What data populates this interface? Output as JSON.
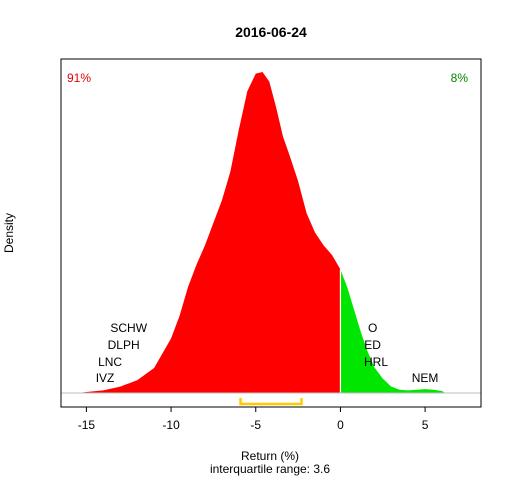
{
  "chart_data": {
    "type": "area",
    "title": "2016-06-24",
    "xlabel": "Return (%)",
    "subtitle": "interquartile range: 3.6",
    "ylabel": "Density",
    "xlim": [
      -16.5,
      8.3
    ],
    "x_ticks": [
      -15,
      -10,
      -5,
      0,
      5
    ],
    "x_tick_labels": [
      "-15",
      "-10",
      "-5",
      "0",
      "5"
    ],
    "density_curve": [
      [
        -15.5,
        0.0
      ],
      [
        -15.0,
        0.003
      ],
      [
        -14.0,
        0.008
      ],
      [
        -13.0,
        0.02
      ],
      [
        -12.0,
        0.04
      ],
      [
        -11.0,
        0.078
      ],
      [
        -10.0,
        0.17
      ],
      [
        -9.5,
        0.24
      ],
      [
        -9.0,
        0.33
      ],
      [
        -8.5,
        0.4
      ],
      [
        -8.0,
        0.46
      ],
      [
        -7.5,
        0.53
      ],
      [
        -7.0,
        0.6
      ],
      [
        -6.5,
        0.69
      ],
      [
        -6.0,
        0.82
      ],
      [
        -5.5,
        0.94
      ],
      [
        -5.0,
        0.995
      ],
      [
        -4.6,
        1.0
      ],
      [
        -4.2,
        0.97
      ],
      [
        -3.8,
        0.89
      ],
      [
        -3.4,
        0.8
      ],
      [
        -3.0,
        0.74
      ],
      [
        -2.5,
        0.66
      ],
      [
        -2.0,
        0.56
      ],
      [
        -1.5,
        0.5
      ],
      [
        -1.0,
        0.46
      ],
      [
        -0.5,
        0.43
      ],
      [
        0.0,
        0.385
      ],
      [
        0.4,
        0.33
      ],
      [
        0.8,
        0.26
      ],
      [
        1.2,
        0.19
      ],
      [
        1.6,
        0.13
      ],
      [
        2.0,
        0.08
      ],
      [
        2.5,
        0.045
      ],
      [
        3.0,
        0.02
      ],
      [
        3.5,
        0.01
      ],
      [
        4.0,
        0.008
      ],
      [
        4.5,
        0.01
      ],
      [
        5.0,
        0.012
      ],
      [
        5.5,
        0.01
      ],
      [
        6.0,
        0.006
      ],
      [
        6.2,
        0.0
      ]
    ],
    "split_at": 0,
    "negative_share_label": "91%",
    "positive_share_label": "8%",
    "negative_color": "#FF0000",
    "positive_color": "#00E600",
    "negative_label_color": "#E00000",
    "positive_label_color": "#008800",
    "iqr": {
      "from": -5.9,
      "to": -2.3,
      "color": "#FFCC00"
    },
    "annotations": [
      {
        "label": "SCHW",
        "x": -12.5,
        "level": 4
      },
      {
        "label": "DLPH",
        "x": -12.8,
        "level": 3
      },
      {
        "label": "LNC",
        "x": -13.6,
        "level": 2
      },
      {
        "label": "IVZ",
        "x": -13.9,
        "level": 1
      },
      {
        "label": "O",
        "x": 1.9,
        "level": 4
      },
      {
        "label": "ED",
        "x": 1.9,
        "level": 3
      },
      {
        "label": "HRL",
        "x": 2.1,
        "level": 2
      },
      {
        "label": "NEM",
        "x": 5.0,
        "level": 1
      }
    ],
    "grid": false,
    "legend": "none"
  }
}
